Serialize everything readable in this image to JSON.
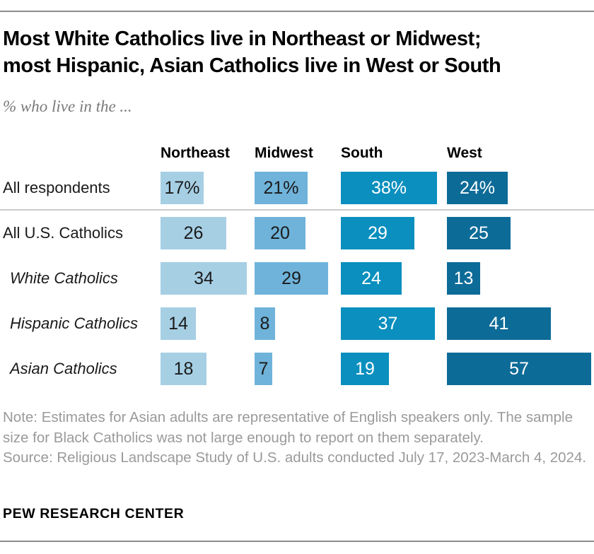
{
  "header": {
    "title_line1": "Most White Catholics live in Northeast or Midwest;",
    "title_line2": "most Hispanic, Asian Catholics live in West or South",
    "subtitle": "% who live in the ..."
  },
  "chart_data": {
    "type": "bar",
    "orientation": "horizontal",
    "unit": "percent",
    "xlim": [
      0,
      57
    ],
    "grid": false,
    "legend_position": "column headers above first row",
    "categories": [
      "Northeast",
      "Midwest",
      "South",
      "West"
    ],
    "series_colors": [
      "#A6CFE4",
      "#6FB3DA",
      "#0A8FBE",
      "#0D6B97"
    ],
    "value_text_colors": [
      "#1A1A1A",
      "#1A1A1A",
      "#FFFFFF",
      "#FFFFFF"
    ],
    "rows": [
      {
        "label": "All respondents",
        "italic": false,
        "values": [
          17,
          21,
          38,
          24
        ],
        "display": [
          "17%",
          "21%",
          "38%",
          "24%"
        ]
      },
      {
        "label": "All U.S. Catholics",
        "italic": false,
        "values": [
          26,
          20,
          29,
          25
        ],
        "display": [
          "26",
          "20",
          "29",
          "25"
        ]
      },
      {
        "label": "White Catholics",
        "italic": true,
        "values": [
          34,
          29,
          24,
          13
        ],
        "display": [
          "34",
          "29",
          "24",
          "13"
        ]
      },
      {
        "label": "Hispanic Catholics",
        "italic": true,
        "values": [
          14,
          8,
          37,
          41
        ],
        "display": [
          "14",
          "8",
          "37",
          "41"
        ]
      },
      {
        "label": "Asian Catholics",
        "italic": true,
        "values": [
          18,
          7,
          19,
          57
        ],
        "display": [
          "18",
          "7",
          "19",
          "57"
        ]
      }
    ]
  },
  "note": {
    "note_text": "Note: Estimates for Asian adults are representative of English speakers only. The sample size for Black Catholics was not large enough to report on them separately.",
    "source_text": "Source: Religious Landscape Study of U.S. adults conducted July 17, 2023-March 4, 2024."
  },
  "footer": {
    "wordmark": "PEW RESEARCH CENTER"
  }
}
